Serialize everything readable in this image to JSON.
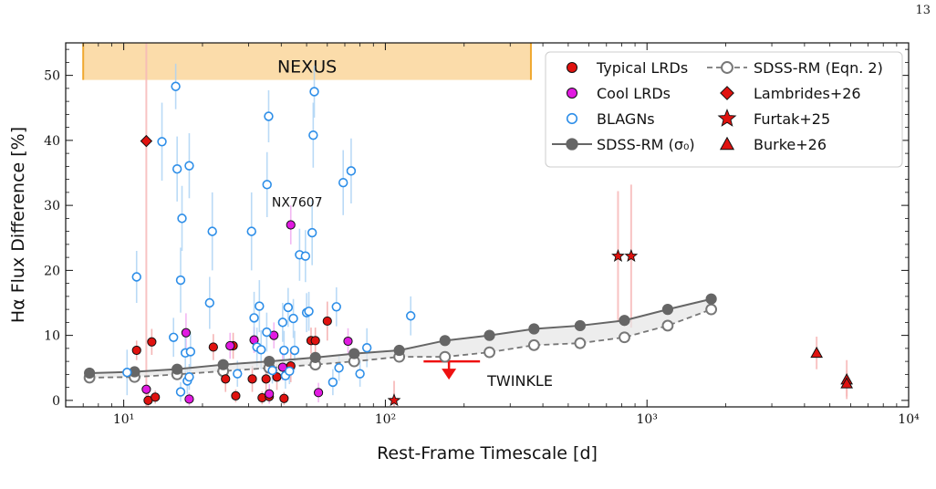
{
  "page_number": "13",
  "chart_data": {
    "type": "scatter",
    "xlabel": "Rest-Frame Timescale [d]",
    "ylabel": "Hα Flux Difference [%]",
    "xscale": "log",
    "xlim": [
      6,
      10000
    ],
    "ylim": [
      -1,
      55
    ],
    "xticks": [
      10,
      100,
      1000,
      10000
    ],
    "xtick_labels": [
      "10¹",
      "10²",
      "10³",
      "10⁴"
    ],
    "yticks": [
      0,
      10,
      20,
      30,
      40,
      50
    ],
    "ytick_labels": [
      "0",
      "10",
      "20",
      "30",
      "40",
      "50"
    ],
    "grid": false,
    "legend_position": "top-right",
    "nexus_band": {
      "label": "NEXUS",
      "x_range": [
        7,
        360
      ],
      "y_range": [
        49.3,
        55
      ]
    },
    "series": [
      {
        "name": "Typical LRDs",
        "marker": "circle-filled",
        "color": "#e0120f",
        "points": [
          [
            11.2,
            7.7,
            1.5
          ],
          [
            12.4,
            0,
            1.5
          ],
          [
            12.8,
            9.0,
            2
          ],
          [
            13.2,
            0.5,
            1
          ],
          [
            22.0,
            8.2,
            2
          ],
          [
            24.5,
            3.3,
            2
          ],
          [
            26.2,
            8.4,
            2
          ],
          [
            26.8,
            0.7,
            1
          ],
          [
            31.0,
            3.3,
            2
          ],
          [
            33.8,
            0.4,
            1
          ],
          [
            35.0,
            3.3,
            2
          ],
          [
            36.0,
            0.6,
            1
          ],
          [
            38.5,
            3.6,
            2
          ],
          [
            41.0,
            0.3,
            1
          ],
          [
            43.5,
            5.3,
            2.5
          ],
          [
            52.0,
            9.2,
            2
          ],
          [
            54.0,
            9.2,
            2
          ],
          [
            60.0,
            12.2,
            3
          ]
        ]
      },
      {
        "name": "Cool LRDs",
        "marker": "circle-filled",
        "color": "#e11ae1",
        "points": [
          [
            12.2,
            1.7,
            1.5
          ],
          [
            17.3,
            10.4,
            3
          ],
          [
            17.8,
            0.2,
            1
          ],
          [
            25.5,
            8.4,
            2
          ],
          [
            31.5,
            9.3,
            2
          ],
          [
            36.0,
            1.0,
            1.5
          ],
          [
            37.5,
            10.0,
            2
          ],
          [
            40.5,
            5.1,
            2
          ],
          [
            43.5,
            27.0,
            3
          ],
          [
            55.5,
            1.2,
            1.5
          ],
          [
            72.0,
            9.1,
            2
          ]
        ]
      },
      {
        "name": "BLAGNs",
        "marker": "circle-open",
        "color": "#2d8ee8",
        "points": [
          [
            10.3,
            4.3,
            3.5
          ],
          [
            11.2,
            19.0,
            4
          ],
          [
            14.0,
            39.8,
            6
          ],
          [
            15.5,
            9.7,
            3
          ],
          [
            15.8,
            48.3,
            3.5
          ],
          [
            16.0,
            35.6,
            5
          ],
          [
            16.5,
            18.5,
            5
          ],
          [
            16.5,
            1.3,
            1.5
          ],
          [
            16.7,
            28.0,
            5
          ],
          [
            17.2,
            7.3,
            3
          ],
          [
            17.5,
            3.0,
            2
          ],
          [
            17.8,
            36.1,
            5
          ],
          [
            17.8,
            3.6,
            2
          ],
          [
            18.0,
            7.5,
            3
          ],
          [
            21.3,
            15.0,
            4
          ],
          [
            21.8,
            26.0,
            6
          ],
          [
            27.2,
            4.1,
            2
          ],
          [
            30.8,
            26.0,
            6
          ],
          [
            31.5,
            12.7,
            4
          ],
          [
            32.3,
            8.2,
            3
          ],
          [
            33.0,
            14.5,
            4
          ],
          [
            33.5,
            7.8,
            3
          ],
          [
            35.2,
            10.5,
            3
          ],
          [
            35.3,
            33.2,
            5
          ],
          [
            35.8,
            43.7,
            4
          ],
          [
            37.0,
            4.6,
            2
          ],
          [
            40.5,
            12.0,
            3
          ],
          [
            41.0,
            7.7,
            3
          ],
          [
            41.5,
            3.8,
            2
          ],
          [
            42.5,
            14.3,
            3
          ],
          [
            43.0,
            4.5,
            2
          ],
          [
            44.5,
            12.6,
            3
          ],
          [
            45.0,
            7.7,
            3
          ],
          [
            47.0,
            22.4,
            4
          ],
          [
            49.5,
            22.2,
            4
          ],
          [
            50.0,
            13.5,
            3
          ],
          [
            51.0,
            13.7,
            3
          ],
          [
            52.5,
            25.8,
            5
          ],
          [
            53.0,
            40.8,
            5
          ],
          [
            53.5,
            47.5,
            4
          ],
          [
            63.0,
            2.8,
            2
          ],
          [
            65.0,
            14.4,
            3
          ],
          [
            66.5,
            5.0,
            2
          ],
          [
            69.0,
            33.5,
            5
          ],
          [
            74.0,
            35.3,
            5
          ],
          [
            80.0,
            4.1,
            2
          ],
          [
            85.0,
            8.1,
            3
          ],
          [
            125.0,
            13.0,
            3
          ]
        ]
      }
    ],
    "sdss_rm_sigma0": {
      "name": "SDSS-RM (σ₀)",
      "color": "#666666",
      "points": [
        [
          7.4,
          4.2
        ],
        [
          11.0,
          4.4
        ],
        [
          16.0,
          4.8
        ],
        [
          24.0,
          5.5
        ],
        [
          36.0,
          6.0
        ],
        [
          54.0,
          6.6
        ],
        [
          76.0,
          7.2
        ],
        [
          113.0,
          7.7
        ],
        [
          169.0,
          9.2
        ],
        [
          250.0,
          10.0
        ],
        [
          370.0,
          11.0
        ],
        [
          555.0,
          11.5
        ],
        [
          820.0,
          12.3
        ],
        [
          1200.0,
          14.0
        ],
        [
          1760.0,
          15.6
        ]
      ]
    },
    "sdss_rm_eqn2": {
      "name": "SDSS-RM (Eqn. 2)",
      "color": "#777777",
      "points": [
        [
          7.4,
          3.5
        ],
        [
          11.0,
          3.6
        ],
        [
          16.0,
          4.0
        ],
        [
          24.0,
          4.5
        ],
        [
          36.0,
          5.0
        ],
        [
          54.0,
          5.5
        ],
        [
          76.0,
          6.0
        ],
        [
          113.0,
          6.7
        ],
        [
          169.0,
          6.7
        ],
        [
          250.0,
          7.4
        ],
        [
          370.0,
          8.5
        ],
        [
          555.0,
          8.8
        ],
        [
          820.0,
          9.7
        ],
        [
          1200.0,
          11.5
        ],
        [
          1760.0,
          14.0
        ]
      ]
    },
    "lambrides": {
      "name": "Lambrides+26",
      "color": "#e0120f",
      "points": [
        [
          12.2,
          39.9,
          15
        ]
      ]
    },
    "furtak": {
      "name": "Furtak+25",
      "color": "#e0120f",
      "points": [
        [
          108.0,
          0,
          3
        ],
        [
          775.0,
          22.2,
          10
        ],
        [
          870.0,
          22.2,
          11
        ]
      ]
    },
    "burke": {
      "name": "Burke+26",
      "color": "#e0120f",
      "points": [
        [
          4450.0,
          7.3,
          2.5
        ],
        [
          5800.0,
          3.2,
          3
        ],
        [
          5800.0,
          2.6,
          2
        ]
      ]
    },
    "twinkle": {
      "label": "TWINKLE",
      "x_range": [
        140,
        230
      ],
      "y": 6.0,
      "x_arrow": 175
    },
    "annotations": [
      {
        "text": "NX7607",
        "x": 46.0,
        "y": 29.8
      }
    ]
  }
}
